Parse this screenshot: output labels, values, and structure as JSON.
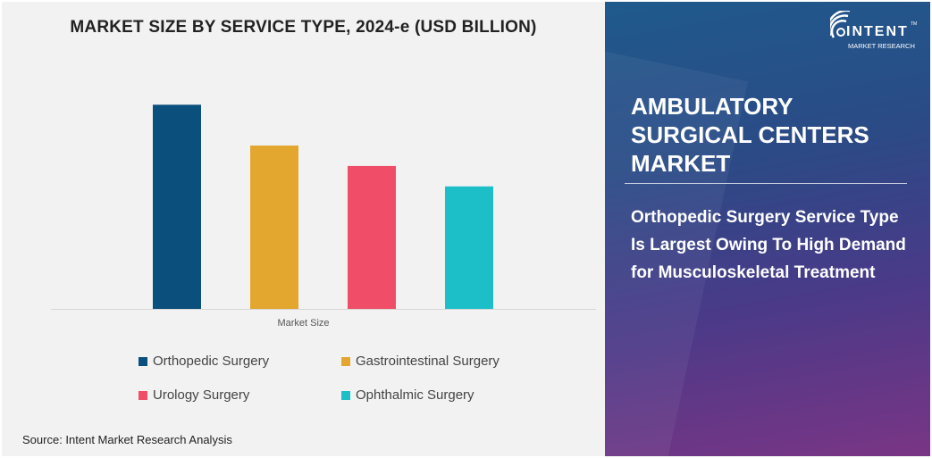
{
  "chart_data": {
    "type": "bar",
    "title": "MARKET SIZE BY SERVICE TYPE, 2024-e (USD BILLION)",
    "xlabel": "Market Size",
    "ylabel": "",
    "categories": [
      "Market Size"
    ],
    "series": [
      {
        "name": "Orthopedic Surgery",
        "values": [
          1.0
        ],
        "color": "#0b4f7c"
      },
      {
        "name": "Gastrointestinal Surgery",
        "values": [
          0.8
        ],
        "color": "#e3a72f"
      },
      {
        "name": "Urology Surgery",
        "values": [
          0.7
        ],
        "color": "#f04e68"
      },
      {
        "name": "Ophthalmic Surgery",
        "values": [
          0.6
        ],
        "color": "#1cbfc8"
      }
    ],
    "ylim": [
      0,
      1.15
    ],
    "grid": false,
    "legend": "bottom"
  },
  "source": "Source: Intent Market Research Analysis",
  "panel": {
    "headline": "AMBULATORY SURGICAL CENTERS MARKET",
    "subheadline": "Orthopedic Surgery Service Type Is Largest Owing To High Demand for Musculoskeletal Treatment",
    "logo": {
      "brand": "INTENT",
      "tagline": "MARKET RESEARCH",
      "tm": "TM"
    }
  }
}
